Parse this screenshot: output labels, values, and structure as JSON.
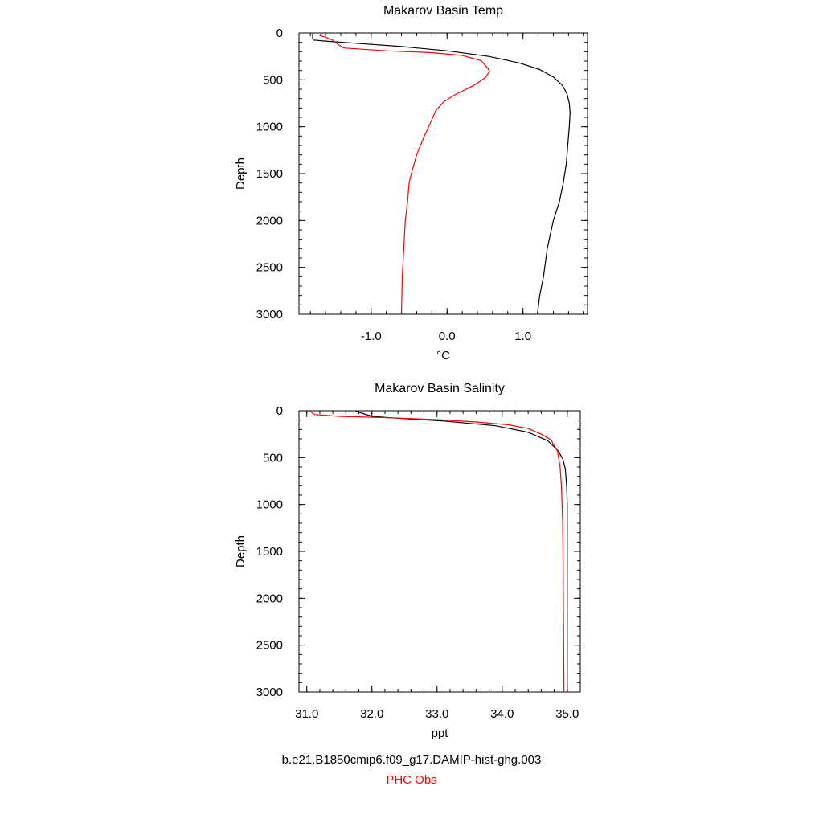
{
  "chart_data": [
    {
      "type": "line",
      "title": "Makarov Basin Temp",
      "xlabel": "°C",
      "ylabel": "Depth",
      "xlim": [
        -1.95,
        1.85
      ],
      "ylim": [
        3000,
        0
      ],
      "x_ticks": [
        -1.0,
        0.0,
        1.0
      ],
      "x_tick_labels": [
        "-1.0",
        "0.0",
        "1.0"
      ],
      "y_ticks": [
        0,
        500,
        1000,
        1500,
        2000,
        2500,
        3000
      ],
      "y_tick_labels": [
        "0",
        "500",
        "1000",
        "1500",
        "2000",
        "2500",
        "3000"
      ],
      "series": [
        {
          "name": "b.e21.B1850cmip6.f09_g17.DAMIP-hist-ghg.003",
          "color": "#000000",
          "points": [
            [
              -1.77,
              5
            ],
            [
              -1.77,
              60
            ],
            [
              -1.76,
              75
            ],
            [
              -1.55,
              90
            ],
            [
              -1.2,
              110
            ],
            [
              -0.6,
              145
            ],
            [
              0.0,
              190
            ],
            [
              0.55,
              250
            ],
            [
              0.95,
              320
            ],
            [
              1.22,
              390
            ],
            [
              1.4,
              470
            ],
            [
              1.52,
              560
            ],
            [
              1.58,
              650
            ],
            [
              1.61,
              750
            ],
            [
              1.62,
              850
            ],
            [
              1.61,
              1000
            ],
            [
              1.59,
              1200
            ],
            [
              1.57,
              1400
            ],
            [
              1.53,
              1600
            ],
            [
              1.48,
              1800
            ],
            [
              1.4,
              2000
            ],
            [
              1.32,
              2300
            ],
            [
              1.27,
              2600
            ],
            [
              1.22,
              2800
            ],
            [
              1.19,
              3000
            ]
          ]
        },
        {
          "name": "PHC Obs",
          "color": "#ff0000",
          "points": [
            [
              -1.65,
              5
            ],
            [
              -1.68,
              25
            ],
            [
              -1.6,
              45
            ],
            [
              -1.5,
              80
            ],
            [
              -1.42,
              130
            ],
            [
              -1.36,
              160
            ],
            [
              -0.8,
              190
            ],
            [
              -0.2,
              210
            ],
            [
              0.2,
              240
            ],
            [
              0.45,
              295
            ],
            [
              0.53,
              370
            ],
            [
              0.56,
              410
            ],
            [
              0.5,
              480
            ],
            [
              0.35,
              560
            ],
            [
              0.1,
              660
            ],
            [
              -0.05,
              740
            ],
            [
              -0.15,
              830
            ],
            [
              -0.23,
              980
            ],
            [
              -0.3,
              1100
            ],
            [
              -0.4,
              1300
            ],
            [
              -0.47,
              1500
            ],
            [
              -0.5,
              1600
            ],
            [
              -0.52,
              1800
            ],
            [
              -0.55,
              2000
            ],
            [
              -0.57,
              2300
            ],
            [
              -0.59,
              2600
            ],
            [
              -0.6,
              3000
            ]
          ]
        }
      ]
    },
    {
      "type": "line",
      "title": "Makarov Basin Salinity",
      "xlabel": "ppt",
      "ylabel": "Depth",
      "xlim": [
        30.88,
        35.2
      ],
      "ylim": [
        3000,
        0
      ],
      "x_ticks": [
        31.0,
        32.0,
        33.0,
        34.0,
        35.0
      ],
      "x_tick_labels": [
        "31.0",
        "32.0",
        "33.0",
        "34.0",
        "35.0"
      ],
      "y_ticks": [
        0,
        500,
        1000,
        1500,
        2000,
        2500,
        3000
      ],
      "y_tick_labels": [
        "0",
        "500",
        "1000",
        "1500",
        "2000",
        "2500",
        "3000"
      ],
      "series": [
        {
          "name": "b.e21.B1850cmip6.f09_g17.DAMIP-hist-ghg.003",
          "color": "#000000",
          "points": [
            [
              31.75,
              5
            ],
            [
              32.0,
              60
            ],
            [
              32.3,
              75
            ],
            [
              33.1,
              110
            ],
            [
              33.9,
              160
            ],
            [
              34.4,
              230
            ],
            [
              34.7,
              320
            ],
            [
              34.85,
              420
            ],
            [
              34.93,
              510
            ],
            [
              34.97,
              620
            ],
            [
              34.99,
              800
            ],
            [
              35.0,
              1000
            ],
            [
              35.0,
              1500
            ],
            [
              35.0,
              2000
            ],
            [
              35.0,
              2500
            ],
            [
              35.0,
              3000
            ]
          ]
        },
        {
          "name": "PHC Obs",
          "color": "#ff0000",
          "points": [
            [
              31.05,
              5
            ],
            [
              31.12,
              40
            ],
            [
              31.5,
              60
            ],
            [
              32.3,
              75
            ],
            [
              33.0,
              95
            ],
            [
              33.6,
              120
            ],
            [
              34.1,
              150
            ],
            [
              34.4,
              190
            ],
            [
              34.6,
              250
            ],
            [
              34.75,
              310
            ],
            [
              34.85,
              430
            ],
            [
              34.89,
              600
            ],
            [
              34.91,
              800
            ],
            [
              34.93,
              1200
            ],
            [
              34.94,
              2000
            ],
            [
              34.95,
              3000
            ]
          ]
        }
      ]
    }
  ],
  "legend": {
    "model_label": "b.e21.B1850cmip6.f09_g17.DAMIP-hist-ghg.003",
    "model_color": "#000000",
    "obs_label": "PHC Obs",
    "obs_color": "#ff0000"
  }
}
